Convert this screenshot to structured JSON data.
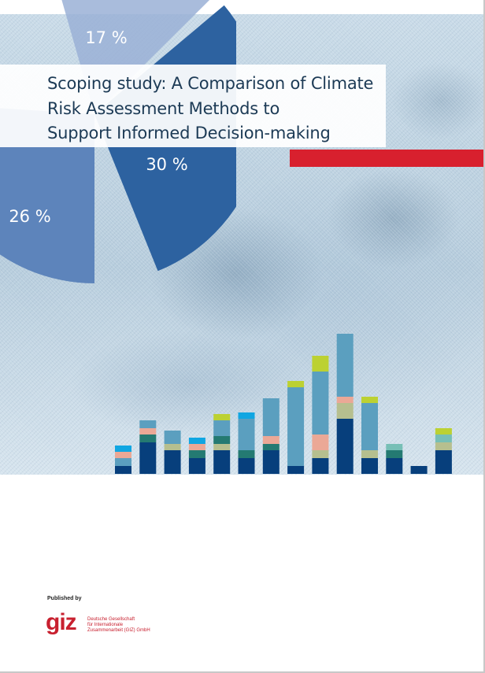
{
  "cover": {
    "title_lines": [
      "Scoping study: A Comparison of Climate",
      "Risk Assessment Methods to",
      "Support Informed Decision-making"
    ],
    "published_by": "Published by",
    "publisher": {
      "logo_text": "giz",
      "org_lines": [
        "Deutsche Gesellschaft",
        "für Internationale",
        "Zusammenarbeit (GIZ) GmbH"
      ]
    }
  },
  "colors": {
    "accent_red": "#d8202e",
    "pie_dark": "#2d62a0",
    "pie_mid": "#5d84bb",
    "pie_light": "#9ab0d6",
    "bar_navy": "#073f7c",
    "bar_teal_dark": "#247a72",
    "bar_olive": "#b6bf8f",
    "bar_salmon": "#eba896",
    "bar_steel": "#5b9fbf",
    "bar_cyan": "#10a6e2",
    "bar_lime": "#bcd132",
    "bar_aqua": "#77bfb6"
  },
  "pie_labels": [
    "17 %",
    "30 %",
    "26 %"
  ],
  "chart_data": [
    {
      "type": "pie",
      "title": "",
      "values": [
        17,
        30,
        26
      ]
    },
    {
      "type": "bar",
      "title": "",
      "stacked": true,
      "segments": [
        [
          [
            "navy",
            10
          ],
          [
            "steel",
            10
          ],
          [
            "salmon",
            8
          ],
          [
            "cyan",
            8
          ]
        ],
        [
          [
            "navy",
            40
          ],
          [
            "teal",
            10
          ],
          [
            "salmon",
            8
          ],
          [
            "steel",
            10
          ]
        ],
        [
          [
            "navy",
            30
          ],
          [
            "olive",
            8
          ],
          [
            "steel",
            17
          ]
        ],
        [
          [
            "navy",
            20
          ],
          [
            "teal",
            10
          ],
          [
            "salmon",
            8
          ],
          [
            "cyan",
            8
          ]
        ],
        [
          [
            "navy",
            30
          ],
          [
            "olive",
            8
          ],
          [
            "teal",
            10
          ],
          [
            "steel",
            20
          ],
          [
            "lime",
            8
          ]
        ],
        [
          [
            "navy",
            20
          ],
          [
            "teal",
            10
          ],
          [
            "steel",
            40
          ],
          [
            "cyan",
            8
          ]
        ],
        [
          [
            "navy",
            30
          ],
          [
            "teal",
            8
          ],
          [
            "salmon",
            10
          ],
          [
            "steel",
            48
          ]
        ],
        [
          [
            "navy",
            10
          ],
          [
            "steel",
            100
          ],
          [
            "lime",
            8
          ]
        ],
        [
          [
            "navy",
            20
          ],
          [
            "olive",
            10
          ],
          [
            "salmon",
            20
          ],
          [
            "steel",
            80
          ],
          [
            "lime",
            20
          ]
        ],
        [
          [
            "navy",
            70
          ],
          [
            "olive",
            20
          ],
          [
            "salmon",
            8
          ],
          [
            "steel",
            80
          ]
        ],
        [
          [
            "navy",
            20
          ],
          [
            "olive",
            10
          ],
          [
            "steel",
            60
          ],
          [
            "lime",
            8
          ]
        ],
        [
          [
            "navy",
            20
          ],
          [
            "teal",
            10
          ],
          [
            "aqua",
            8
          ]
        ],
        [
          [
            "navy",
            10
          ]
        ],
        [
          [
            "navy",
            30
          ],
          [
            "olive",
            10
          ],
          [
            "aqua",
            10
          ],
          [
            "lime",
            8
          ]
        ]
      ]
    }
  ]
}
